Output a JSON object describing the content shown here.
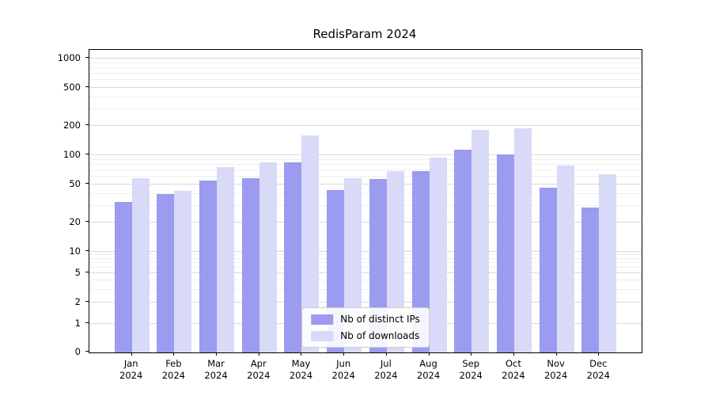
{
  "chart_data": {
    "type": "bar",
    "title": "RedisParam 2024",
    "xlabel": "",
    "ylabel": "",
    "yscale": "symlog",
    "grid": "horizontal major and minor gridlines",
    "legend_position": "lower center",
    "x_categories": [
      "Jan",
      "Feb",
      "Mar",
      "Apr",
      "May",
      "Jun",
      "Jul",
      "Aug",
      "Sep",
      "Oct",
      "Nov",
      "Dec"
    ],
    "x_year": "2024",
    "yticks": [
      0,
      1,
      2,
      5,
      10,
      20,
      50,
      100,
      200,
      500,
      1000
    ],
    "ylim": [
      0,
      1230
    ],
    "series": [
      {
        "name": "Nb of distinct IPs",
        "color": "#9b9bef",
        "values": [
          33,
          40,
          55,
          58,
          85,
          44,
          57,
          68,
          114,
          102,
          46,
          29
        ]
      },
      {
        "name": "Nb of downloads",
        "color": "#d9d9f8",
        "values": [
          58,
          43,
          75,
          85,
          160,
          58,
          68,
          95,
          183,
          190,
          78,
          63
        ]
      }
    ]
  }
}
